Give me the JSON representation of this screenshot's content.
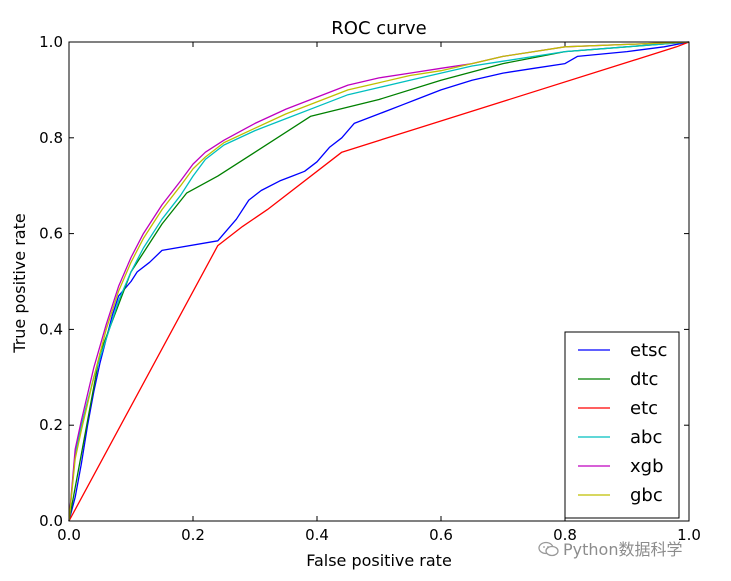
{
  "chart_data": {
    "type": "line",
    "title": "ROC curve",
    "xlabel": "False positive rate",
    "ylabel": "True positive rate",
    "xlim": [
      0,
      1
    ],
    "ylim": [
      0,
      1
    ],
    "xticks": [
      "0.0",
      "0.2",
      "0.4",
      "0.6",
      "0.8",
      "1.0"
    ],
    "yticks": [
      "0.0",
      "0.2",
      "0.4",
      "0.6",
      "0.8",
      "1.0"
    ],
    "grid": false,
    "legend_position": "lower-right",
    "series": [
      {
        "name": "etsc",
        "color": "#0000ff",
        "points": [
          [
            0,
            0
          ],
          [
            0.01,
            0.05
          ],
          [
            0.02,
            0.12
          ],
          [
            0.03,
            0.2
          ],
          [
            0.04,
            0.27
          ],
          [
            0.05,
            0.33
          ],
          [
            0.06,
            0.38
          ],
          [
            0.07,
            0.43
          ],
          [
            0.08,
            0.47
          ],
          [
            0.1,
            0.5
          ],
          [
            0.11,
            0.52
          ],
          [
            0.13,
            0.54
          ],
          [
            0.15,
            0.565
          ],
          [
            0.24,
            0.585
          ],
          [
            0.25,
            0.6
          ],
          [
            0.27,
            0.63
          ],
          [
            0.29,
            0.67
          ],
          [
            0.31,
            0.69
          ],
          [
            0.34,
            0.71
          ],
          [
            0.36,
            0.72
          ],
          [
            0.38,
            0.73
          ],
          [
            0.4,
            0.75
          ],
          [
            0.42,
            0.78
          ],
          [
            0.44,
            0.8
          ],
          [
            0.46,
            0.83
          ],
          [
            0.48,
            0.84
          ],
          [
            0.5,
            0.85
          ],
          [
            0.52,
            0.86
          ],
          [
            0.54,
            0.87
          ],
          [
            0.56,
            0.88
          ],
          [
            0.6,
            0.9
          ],
          [
            0.65,
            0.92
          ],
          [
            0.7,
            0.935
          ],
          [
            0.75,
            0.945
          ],
          [
            0.8,
            0.955
          ],
          [
            0.82,
            0.97
          ],
          [
            0.9,
            0.98
          ],
          [
            0.96,
            0.99
          ],
          [
            1,
            1
          ]
        ]
      },
      {
        "name": "dtc",
        "color": "#008000",
        "points": [
          [
            0,
            0
          ],
          [
            0.05,
            0.35
          ],
          [
            0.1,
            0.52
          ],
          [
            0.15,
            0.62
          ],
          [
            0.19,
            0.685
          ],
          [
            0.24,
            0.72
          ],
          [
            0.3,
            0.77
          ],
          [
            0.39,
            0.845
          ],
          [
            0.5,
            0.88
          ],
          [
            0.6,
            0.92
          ],
          [
            0.7,
            0.955
          ],
          [
            0.8,
            0.98
          ],
          [
            0.9,
            0.99
          ],
          [
            1,
            1
          ]
        ]
      },
      {
        "name": "etc",
        "color": "#ff0000",
        "points": [
          [
            0,
            0
          ],
          [
            0.24,
            0.575
          ],
          [
            0.28,
            0.615
          ],
          [
            0.32,
            0.65
          ],
          [
            0.44,
            0.77
          ],
          [
            0.98,
            0.99
          ],
          [
            1,
            1
          ]
        ]
      },
      {
        "name": "abc",
        "color": "#00bfbf",
        "points": [
          [
            0,
            0
          ],
          [
            0.01,
            0.14
          ],
          [
            0.02,
            0.2
          ],
          [
            0.04,
            0.3
          ],
          [
            0.06,
            0.38
          ],
          [
            0.08,
            0.46
          ],
          [
            0.1,
            0.52
          ],
          [
            0.12,
            0.57
          ],
          [
            0.15,
            0.63
          ],
          [
            0.18,
            0.68
          ],
          [
            0.2,
            0.72
          ],
          [
            0.22,
            0.755
          ],
          [
            0.25,
            0.785
          ],
          [
            0.3,
            0.815
          ],
          [
            0.35,
            0.84
          ],
          [
            0.4,
            0.865
          ],
          [
            0.45,
            0.89
          ],
          [
            0.5,
            0.905
          ],
          [
            0.55,
            0.92
          ],
          [
            0.6,
            0.935
          ],
          [
            0.65,
            0.95
          ],
          [
            0.7,
            0.96
          ],
          [
            0.75,
            0.97
          ],
          [
            0.8,
            0.98
          ],
          [
            0.9,
            0.99
          ],
          [
            1,
            1
          ]
        ]
      },
      {
        "name": "xgb",
        "color": "#bf00bf",
        "points": [
          [
            0,
            0
          ],
          [
            0.01,
            0.15
          ],
          [
            0.02,
            0.21
          ],
          [
            0.04,
            0.32
          ],
          [
            0.06,
            0.41
          ],
          [
            0.08,
            0.49
          ],
          [
            0.1,
            0.55
          ],
          [
            0.12,
            0.6
          ],
          [
            0.15,
            0.66
          ],
          [
            0.18,
            0.71
          ],
          [
            0.2,
            0.745
          ],
          [
            0.22,
            0.77
          ],
          [
            0.25,
            0.795
          ],
          [
            0.3,
            0.83
          ],
          [
            0.35,
            0.86
          ],
          [
            0.4,
            0.885
          ],
          [
            0.45,
            0.91
          ],
          [
            0.5,
            0.925
          ],
          [
            0.55,
            0.935
          ],
          [
            0.6,
            0.945
          ],
          [
            0.65,
            0.955
          ],
          [
            0.7,
            0.97
          ],
          [
            0.75,
            0.98
          ],
          [
            0.8,
            0.99
          ],
          [
            0.9,
            0.995
          ],
          [
            1,
            1
          ]
        ]
      },
      {
        "name": "gbc",
        "color": "#bfbf00",
        "points": [
          [
            0,
            0
          ],
          [
            0.01,
            0.13
          ],
          [
            0.02,
            0.19
          ],
          [
            0.04,
            0.3
          ],
          [
            0.06,
            0.4
          ],
          [
            0.08,
            0.48
          ],
          [
            0.1,
            0.54
          ],
          [
            0.12,
            0.59
          ],
          [
            0.15,
            0.65
          ],
          [
            0.18,
            0.7
          ],
          [
            0.2,
            0.735
          ],
          [
            0.22,
            0.76
          ],
          [
            0.25,
            0.79
          ],
          [
            0.3,
            0.82
          ],
          [
            0.35,
            0.85
          ],
          [
            0.4,
            0.875
          ],
          [
            0.45,
            0.9
          ],
          [
            0.5,
            0.915
          ],
          [
            0.55,
            0.93
          ],
          [
            0.6,
            0.94
          ],
          [
            0.65,
            0.955
          ],
          [
            0.7,
            0.97
          ],
          [
            0.75,
            0.98
          ],
          [
            0.8,
            0.99
          ],
          [
            0.9,
            0.995
          ],
          [
            1,
            1
          ]
        ]
      }
    ]
  },
  "watermark": {
    "text": "Python数据科学",
    "icon": "wechat-icon"
  }
}
